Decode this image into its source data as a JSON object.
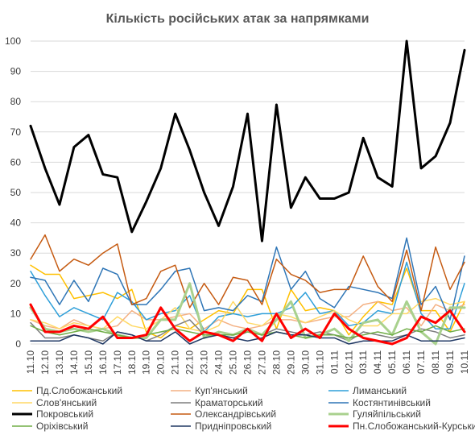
{
  "chart_data": {
    "type": "line",
    "title": "Кількість російських атак за напрямками",
    "xlabel": "",
    "ylabel": "",
    "ylim": [
      0,
      100
    ],
    "yticks": [
      0,
      10,
      20,
      30,
      40,
      50,
      60,
      70,
      80,
      90,
      100
    ],
    "grid": true,
    "legend_position": "bottom",
    "x": [
      "11.10",
      "12.10",
      "13.10",
      "14.10",
      "15.10",
      "16.10",
      "17.10",
      "18.10",
      "19.10",
      "20.10",
      "21.10",
      "22.10",
      "23.10",
      "24.10",
      "25.10",
      "26.10",
      "27.10",
      "28.10",
      "29.10",
      "30.10",
      "31.10",
      "01.11",
      "02.11",
      "03.11",
      "04.11",
      "05.11",
      "06.11",
      "07.11",
      "08.11",
      "09.11",
      "10.11"
    ],
    "series": [
      {
        "name": "Пд.Слобожанський",
        "color": "#ffc000",
        "width": 1.5,
        "values": [
          26,
          23,
          23,
          15,
          16,
          17,
          15,
          18,
          4,
          2,
          6,
          5,
          8,
          11,
          10,
          18,
          18,
          5,
          18,
          11,
          12,
          11,
          3,
          9,
          14,
          13,
          25,
          11,
          11,
          4,
          14
        ]
      },
      {
        "name": "Куп'янський",
        "color": "#f4b183",
        "width": 1.5,
        "values": [
          8,
          6,
          5,
          8,
          6,
          5,
          6,
          11,
          8,
          8,
          9,
          10,
          5,
          8,
          6,
          5,
          6,
          8,
          8,
          7,
          8,
          9,
          9,
          13,
          14,
          11,
          12,
          6,
          13,
          11,
          13
        ]
      },
      {
        "name": "Лиманський",
        "color": "#2e9fd9",
        "width": 1.5,
        "values": [
          24,
          16,
          9,
          12,
          10,
          8,
          17,
          14,
          8,
          10,
          11,
          16,
          4,
          9,
          10,
          9,
          10,
          10,
          12,
          17,
          10,
          11,
          6,
          7,
          11,
          10,
          27,
          10,
          5,
          5,
          20
        ]
      },
      {
        "name": "Слов'янський",
        "color": "#ffd966",
        "width": 1.5,
        "values": [
          8,
          7,
          5,
          7,
          6,
          5,
          9,
          6,
          5,
          8,
          12,
          5,
          4,
          6,
          14,
          7,
          6,
          10,
          9,
          7,
          9,
          11,
          8,
          6,
          6,
          10,
          10,
          14,
          15,
          13,
          14
        ]
      },
      {
        "name": "Краматорський",
        "color": "#7f7f7f",
        "width": 1.5,
        "values": [
          7,
          2,
          2,
          3,
          2,
          1,
          4,
          3,
          1,
          3,
          6,
          8,
          3,
          3,
          2,
          4,
          3,
          5,
          4,
          3,
          4,
          3,
          1,
          4,
          3,
          2,
          3,
          5,
          4,
          2,
          3
        ]
      },
      {
        "name": "Костянтинівський",
        "color": "#2e75b6",
        "width": 1.5,
        "values": [
          22,
          21,
          13,
          21,
          14,
          25,
          23,
          13,
          13,
          18,
          24,
          25,
          11,
          12,
          11,
          16,
          14,
          32,
          18,
          24,
          15,
          12,
          19,
          18,
          17,
          15,
          35,
          13,
          19,
          8,
          29
        ]
      },
      {
        "name": "Покровський",
        "color": "#000000",
        "width": 3,
        "values": [
          72,
          58,
          46,
          65,
          69,
          56,
          55,
          37,
          47,
          58,
          76,
          64,
          50,
          39,
          52,
          76,
          34,
          79,
          45,
          55,
          48,
          48,
          50,
          68,
          55,
          52,
          100,
          58,
          62,
          73,
          97
        ]
      },
      {
        "name": "Олександрівський",
        "color": "#c55a11",
        "width": 1.5,
        "values": [
          28,
          36,
          24,
          28,
          26,
          30,
          33,
          13,
          15,
          24,
          26,
          12,
          20,
          13,
          22,
          21,
          13,
          28,
          23,
          21,
          17,
          18,
          18,
          29,
          19,
          14,
          31,
          11,
          32,
          18,
          27
        ]
      },
      {
        "name": "Гуляйпільський",
        "color": "#a9d18e",
        "width": 3,
        "values": [
          12,
          5,
          4,
          5,
          4,
          5,
          3,
          2,
          2,
          8,
          8,
          20,
          2,
          4,
          3,
          5,
          3,
          8,
          14,
          2,
          3,
          5,
          1,
          7,
          8,
          3,
          14,
          4,
          0,
          12,
          12
        ]
      },
      {
        "name": "Оріхівський",
        "color": "#70ad47",
        "width": 1.5,
        "values": [
          6,
          4,
          3,
          4,
          5,
          4,
          3,
          2,
          3,
          4,
          5,
          4,
          3,
          3,
          3,
          4,
          3,
          4,
          3,
          2,
          3,
          3,
          2,
          3,
          4,
          3,
          5,
          4,
          6,
          4,
          5
        ]
      },
      {
        "name": "Придніпровський",
        "color": "#203864",
        "width": 1.5,
        "values": [
          1,
          1,
          1,
          3,
          2,
          0,
          4,
          3,
          1,
          1,
          4,
          0,
          2,
          3,
          2,
          1,
          2,
          4,
          3,
          3,
          2,
          2,
          0,
          1,
          1,
          1,
          3,
          1,
          1,
          1,
          2
        ]
      },
      {
        "name": "Пн.Слобожанський-Курський",
        "color": "#ff0000",
        "width": 3,
        "values": [
          13,
          4,
          4,
          6,
          5,
          9,
          2,
          2,
          3,
          12,
          5,
          1,
          4,
          3,
          1,
          5,
          1,
          10,
          2,
          5,
          2,
          10,
          5,
          2,
          1,
          0,
          2,
          9,
          7,
          11,
          4
        ]
      }
    ]
  }
}
